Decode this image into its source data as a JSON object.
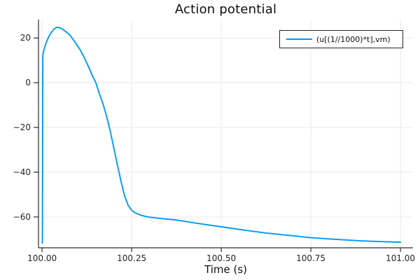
{
  "figure": {
    "background": "#ffffff",
    "axis_color": "#2c2c31",
    "grid_color": "#e9e9ee",
    "tick_label_color": "#232326",
    "title_color": "#101010"
  },
  "chart_data": {
    "type": "line",
    "title": "Action potential",
    "xlabel": "Time (s)",
    "ylabel": "",
    "xlim": [
      99.99,
      101.035
    ],
    "ylim": [
      -73.8,
      28.2
    ],
    "grid": true,
    "legend_position": "top-right",
    "xticks": [
      100.0,
      100.25,
      100.5,
      100.75,
      101.0
    ],
    "xtick_labels": [
      "100.00",
      "100.25",
      "100.50",
      "100.75",
      "101.00"
    ],
    "yticks": [
      20,
      0,
      -20,
      -40,
      -60
    ],
    "ytick_labels": [
      "20",
      "0",
      "−20",
      "−40",
      "−60"
    ],
    "series": [
      {
        "name": "(u[(1//1000)*t],vm)",
        "color": "#009af9",
        "x": [
          100.0,
          100.001,
          100.0015,
          100.002,
          100.004,
          100.007,
          100.012,
          100.02,
          100.029,
          100.035,
          100.041,
          100.048,
          100.055,
          100.065,
          100.078,
          100.09,
          100.105,
          100.117,
          100.13,
          100.14,
          100.15,
          100.16,
          100.17,
          100.18,
          100.19,
          100.2,
          100.21,
          100.22,
          100.23,
          100.24,
          100.25,
          100.26,
          100.275,
          100.295,
          100.33,
          100.37,
          100.43,
          100.5,
          100.565,
          100.625,
          100.685,
          100.75,
          100.82,
          100.88,
          100.94,
          101.0
        ],
        "y": [
          -71.6,
          -71.0,
          -30.0,
          11.9,
          13.8,
          15.8,
          18.2,
          21.0,
          23.2,
          24.2,
          24.8,
          24.6,
          24.1,
          23.0,
          21.2,
          18.6,
          15.0,
          11.5,
          7.0,
          3.2,
          0.0,
          -5.0,
          -9.5,
          -15.0,
          -21.5,
          -29.0,
          -36.5,
          -44.0,
          -50.5,
          -54.8,
          -57.0,
          -58.2,
          -59.2,
          -60.0,
          -60.7,
          -61.3,
          -62.8,
          -64.4,
          -65.9,
          -67.2,
          -68.2,
          -69.3,
          -70.0,
          -70.6,
          -71.0,
          -71.3
        ]
      }
    ]
  }
}
